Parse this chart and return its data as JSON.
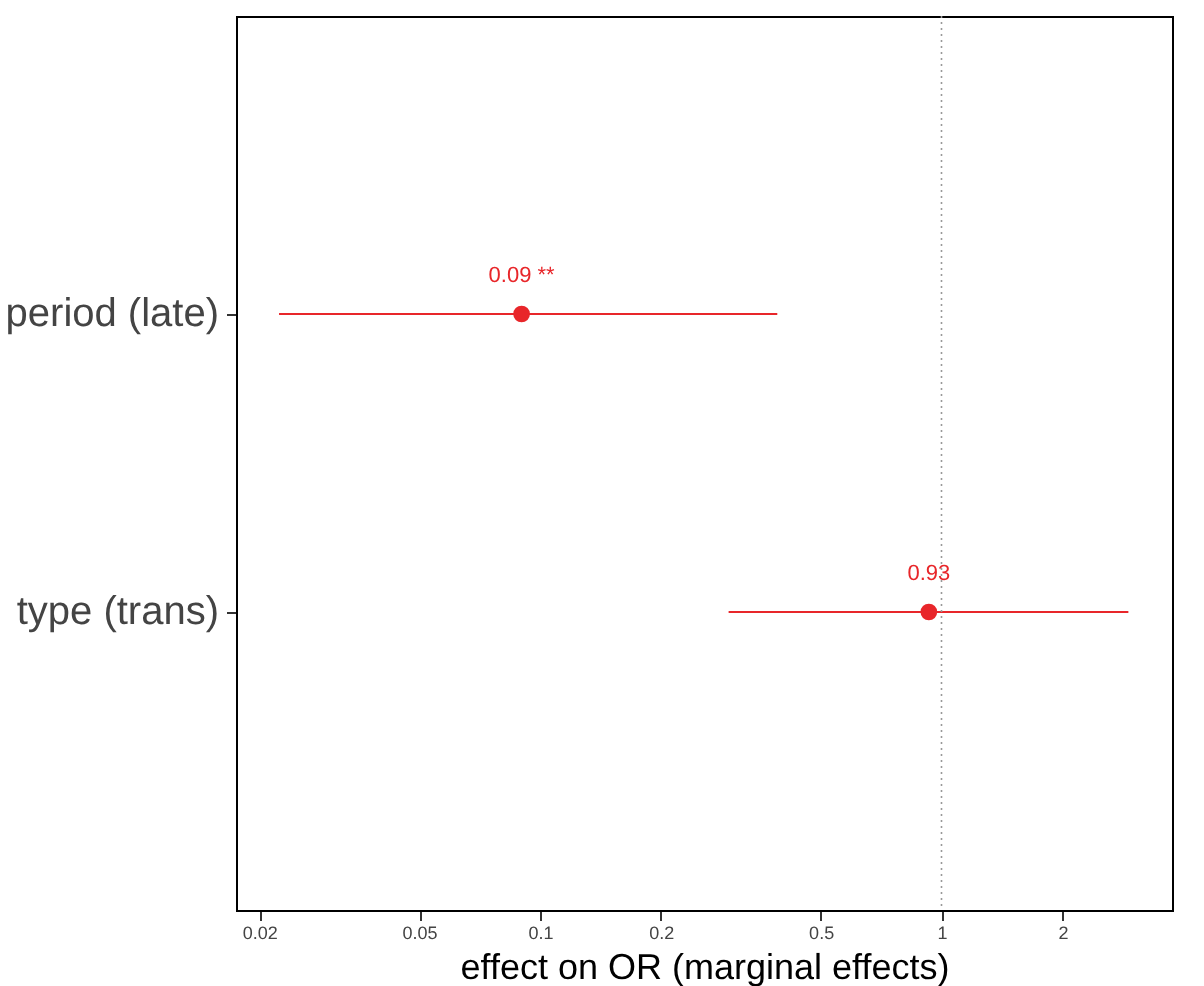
{
  "chart_data": {
    "type": "scatter",
    "orientation": "horizontal",
    "xlabel": "effect on OR (marginal effects)",
    "categories": [
      "period (late)",
      "type (trans)"
    ],
    "series": [
      {
        "color": "#e8262a",
        "values": [
          0.09,
          0.93
        ],
        "errors": [
          [
            0.0224,
            0.39
          ],
          [
            0.295,
            2.92
          ]
        ],
        "value_labels": [
          "0.09 **",
          "0.93"
        ]
      }
    ],
    "log": "x",
    "xlim": [
      0.0175,
      3.75
    ],
    "xticks": [
      0.02,
      0.05,
      0.1,
      0.2,
      0.5,
      1,
      2
    ],
    "ref_lines": [
      {
        "axis": "x",
        "value": 1,
        "color": "#999999",
        "line_style": "dotted"
      }
    ],
    "grid": false,
    "marker": "circle"
  }
}
